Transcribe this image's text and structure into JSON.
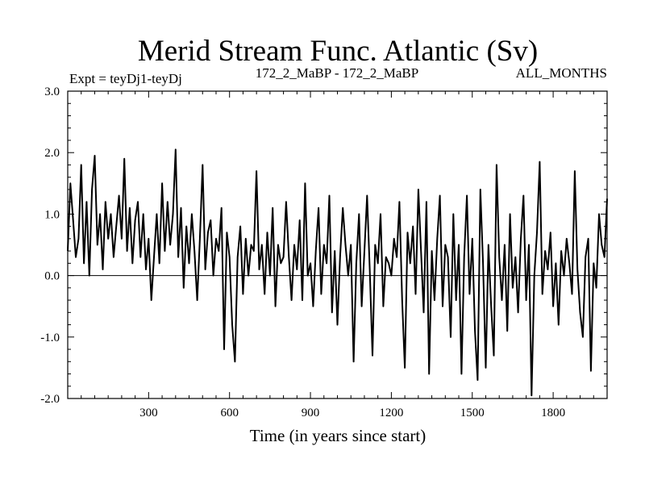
{
  "chart_data": {
    "type": "line",
    "title": "Merid Stream Func. Atlantic (Sv)",
    "subtitle_left": "Expt = teyDj1-teyDj",
    "subtitle_center": "172_2_MaBP - 172_2_MaBP",
    "subtitle_right": "ALL_MONTHS",
    "xlabel": "Time (in years since start)",
    "ylabel": "",
    "xlim": [
      0,
      2000
    ],
    "ylim": [
      -2.0,
      3.0
    ],
    "x_ticks": [
      300,
      600,
      900,
      1200,
      1500,
      1800
    ],
    "x_tick_labels": [
      "300",
      "600",
      "900",
      "1200",
      "1500",
      "1800"
    ],
    "y_ticks": [
      -2.0,
      -1.0,
      0.0,
      1.0,
      2.0,
      3.0
    ],
    "y_tick_labels": [
      "-2.0",
      "-1.0",
      "0.0",
      "1.0",
      "2.0",
      "3.0"
    ],
    "reference_line_y": 0.0,
    "series": [
      {
        "name": "Merid Stream Func. Atlantic",
        "color": "#000000",
        "x": [
          0,
          10,
          20,
          30,
          40,
          50,
          60,
          70,
          80,
          90,
          100,
          110,
          120,
          130,
          140,
          150,
          160,
          170,
          180,
          190,
          200,
          210,
          220,
          230,
          240,
          250,
          260,
          270,
          280,
          290,
          300,
          310,
          320,
          330,
          340,
          350,
          360,
          370,
          380,
          390,
          400,
          410,
          420,
          430,
          440,
          450,
          460,
          470,
          480,
          490,
          500,
          510,
          520,
          530,
          540,
          550,
          560,
          570,
          580,
          590,
          600,
          610,
          620,
          630,
          640,
          650,
          660,
          670,
          680,
          690,
          700,
          710,
          720,
          730,
          740,
          750,
          760,
          770,
          780,
          790,
          800,
          810,
          820,
          830,
          840,
          850,
          860,
          870,
          880,
          890,
          900,
          910,
          920,
          930,
          940,
          950,
          960,
          970,
          980,
          990,
          1000,
          1010,
          1020,
          1030,
          1040,
          1050,
          1060,
          1070,
          1080,
          1090,
          1100,
          1110,
          1120,
          1130,
          1140,
          1150,
          1160,
          1170,
          1180,
          1190,
          1200,
          1210,
          1220,
          1230,
          1240,
          1250,
          1260,
          1270,
          1280,
          1290,
          1300,
          1310,
          1320,
          1330,
          1340,
          1350,
          1360,
          1370,
          1380,
          1390,
          1400,
          1410,
          1420,
          1430,
          1440,
          1450,
          1460,
          1470,
          1480,
          1490,
          1500,
          1510,
          1520,
          1530,
          1540,
          1550,
          1560,
          1570,
          1580,
          1590,
          1600,
          1610,
          1620,
          1630,
          1640,
          1650,
          1660,
          1670,
          1680,
          1690,
          1700,
          1710,
          1720,
          1730,
          1740,
          1750,
          1760,
          1770,
          1780,
          1790,
          1800,
          1810,
          1820,
          1830,
          1840,
          1850,
          1860,
          1870,
          1880,
          1890,
          1900,
          1910,
          1920,
          1930,
          1940,
          1950,
          1960,
          1970,
          1980,
          1990,
          2000
        ],
        "values": [
          0.4,
          1.5,
          0.9,
          0.3,
          0.6,
          1.8,
          0.2,
          1.2,
          0.0,
          1.4,
          1.95,
          0.5,
          1.0,
          0.1,
          1.2,
          0.6,
          1.0,
          0.3,
          0.8,
          1.3,
          0.6,
          1.9,
          0.4,
          1.1,
          0.2,
          0.9,
          1.2,
          0.3,
          1.0,
          0.1,
          0.6,
          -0.4,
          0.3,
          1.0,
          0.2,
          1.5,
          0.4,
          1.2,
          0.5,
          1.0,
          2.05,
          0.3,
          1.1,
          -0.2,
          0.8,
          0.2,
          1.0,
          0.4,
          -0.4,
          0.6,
          1.8,
          0.1,
          0.7,
          0.9,
          0.0,
          0.6,
          0.4,
          1.1,
          -1.2,
          0.7,
          0.3,
          -0.8,
          -1.4,
          0.3,
          0.8,
          -0.3,
          0.6,
          0.0,
          0.5,
          0.4,
          1.7,
          0.1,
          0.5,
          -0.3,
          0.7,
          0.0,
          1.1,
          -0.5,
          0.5,
          0.2,
          0.3,
          1.2,
          0.3,
          -0.4,
          0.5,
          0.1,
          0.9,
          -0.4,
          1.5,
          0.0,
          0.2,
          -0.5,
          0.4,
          1.1,
          -0.3,
          0.5,
          0.2,
          1.3,
          -0.6,
          0.4,
          -0.8,
          0.3,
          1.1,
          0.5,
          0.0,
          0.5,
          -1.4,
          0.2,
          1.0,
          -0.5,
          0.4,
          1.3,
          0.1,
          -1.3,
          0.5,
          0.2,
          1.0,
          -0.5,
          0.3,
          0.2,
          0.0,
          0.6,
          0.3,
          1.2,
          -0.4,
          -1.5,
          0.7,
          0.2,
          0.8,
          -0.3,
          1.4,
          0.4,
          -0.6,
          1.2,
          -1.6,
          0.4,
          -0.4,
          0.6,
          1.3,
          -0.5,
          0.5,
          0.3,
          -1.0,
          1.0,
          -0.4,
          0.5,
          -1.6,
          0.3,
          1.3,
          -0.3,
          0.6,
          -0.9,
          -1.7,
          1.4,
          0.2,
          -1.5,
          0.5,
          -0.5,
          -1.3,
          1.8,
          0.3,
          -0.4,
          0.5,
          -0.9,
          1.0,
          -0.2,
          0.3,
          -0.6,
          0.6,
          1.3,
          -0.4,
          0.5,
          -1.95,
          0.0,
          0.7,
          1.85,
          -0.3,
          0.4,
          0.1,
          0.7,
          -0.5,
          0.2,
          -0.8,
          0.4,
          0.0,
          0.6,
          0.2,
          -0.3,
          1.7,
          0.1,
          -0.6,
          -1.0,
          0.3,
          0.6,
          -1.55,
          0.2,
          -0.2,
          1.0,
          0.5,
          0.3,
          1.25
        ]
      }
    ]
  }
}
